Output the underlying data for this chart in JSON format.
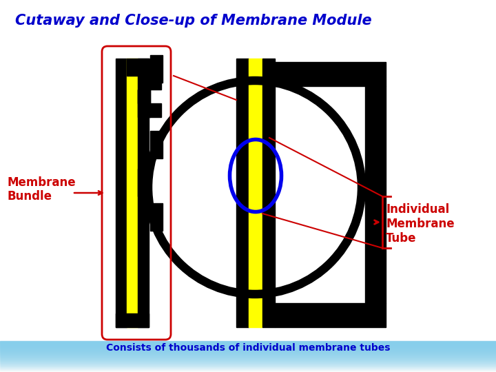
{
  "title": "Cutaway and Close-up of Membrane Module",
  "title_color": "#0000CC",
  "label_membrane_bundle": "Membrane\nBundle",
  "label_individual": "Individual\nMembrane\nTube",
  "label_bottom": "Consists of thousands of individual membrane tubes",
  "label_color_red": "#CC0000",
  "label_color_blue": "#0000CC",
  "black": "#000000",
  "yellow": "#FFFF00",
  "white": "#ffffff",
  "blue_circle_color": "#0000EE",
  "bg_blue": "#87CEEB"
}
